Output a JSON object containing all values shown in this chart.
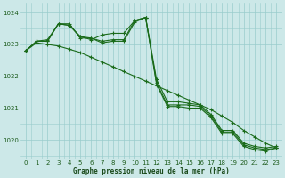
{
  "title": "Graphe pression niveau de la mer (hPa)",
  "background_color": "#cce8e8",
  "grid_color": "#99cccc",
  "line_color": "#1a6b1a",
  "xlim": [
    -0.5,
    23.5
  ],
  "ylim": [
    1019.4,
    1024.3
  ],
  "yticks": [
    1020,
    1021,
    1022,
    1023,
    1024
  ],
  "xticks": [
    0,
    1,
    2,
    3,
    4,
    5,
    6,
    7,
    8,
    9,
    10,
    11,
    12,
    13,
    14,
    15,
    16,
    17,
    18,
    19,
    20,
    21,
    22,
    23
  ],
  "line1": [
    1022.8,
    1023.1,
    1023.1,
    1023.65,
    1023.65,
    1023.2,
    1023.2,
    1023.05,
    1023.1,
    1023.1,
    1023.7,
    1023.85,
    1021.9,
    1021.2,
    1021.2,
    1021.15,
    1021.1,
    1020.8,
    1020.3,
    1020.3,
    1019.9,
    1019.8,
    1019.75,
    1019.8
  ],
  "line2": [
    1022.8,
    1023.1,
    1023.15,
    1023.65,
    1023.6,
    1023.25,
    1023.15,
    1023.3,
    1023.35,
    1023.35,
    1023.75,
    1023.85,
    1021.75,
    1021.05,
    1021.05,
    1021.0,
    1021.0,
    1020.7,
    1020.2,
    1020.2,
    1019.8,
    1019.7,
    1019.65,
    1019.75
  ],
  "line3": [
    1022.8,
    1023.1,
    1023.1,
    1023.65,
    1023.6,
    1023.25,
    1023.2,
    1023.1,
    1023.15,
    1023.15,
    1023.75,
    1023.85,
    1021.8,
    1021.1,
    1021.1,
    1021.1,
    1021.05,
    1020.75,
    1020.25,
    1020.25,
    1019.85,
    1019.75,
    1019.7,
    1019.75
  ],
  "line4": [
    1022.8,
    1023.05,
    1023.0,
    1022.95,
    1022.85,
    1022.75,
    1022.6,
    1022.45,
    1022.3,
    1022.15,
    1022.0,
    1021.85,
    1021.7,
    1021.55,
    1021.4,
    1021.25,
    1021.1,
    1020.95,
    1020.75,
    1020.55,
    1020.3,
    1020.1,
    1019.9,
    1019.75
  ]
}
